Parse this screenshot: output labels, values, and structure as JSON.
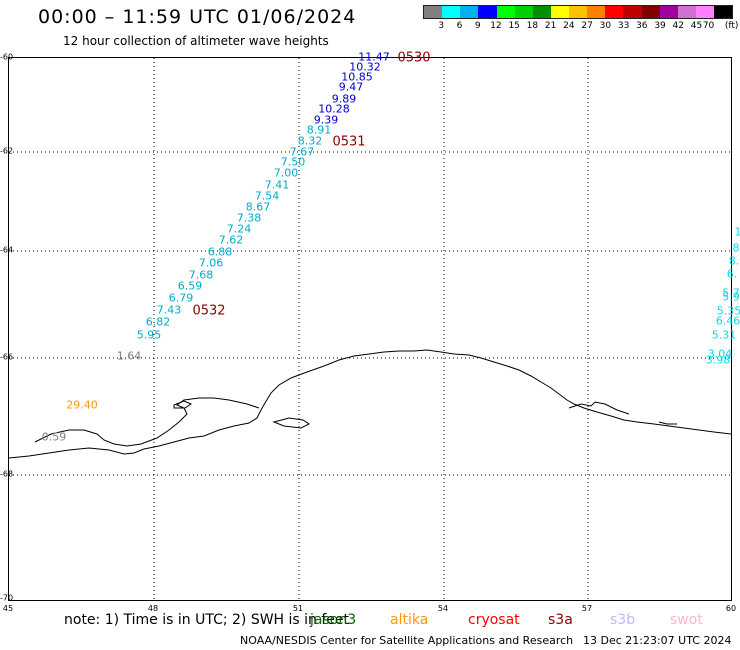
{
  "header": {
    "title": "00:00 – 11:59 UTC 01/06/2024",
    "subtitle": "12 hour collection of altimeter wave heights"
  },
  "legend": {
    "unit": "(ft)",
    "ticks": [
      "3",
      "6",
      "9",
      "12",
      "15",
      "18",
      "21",
      "24",
      "27",
      "30",
      "33",
      "36",
      "39",
      "42",
      "45",
      "70"
    ],
    "colors": [
      "#808080",
      "#00ffff",
      "#00b0f0",
      "#0000ff",
      "#00ff00",
      "#00d000",
      "#009000",
      "#ffff00",
      "#ffc000",
      "#ff8000",
      "#ff0000",
      "#c00000",
      "#800000",
      "#a000a0",
      "#d070d0",
      "#ff80ff",
      "#000000"
    ]
  },
  "axes": {
    "lat_labels": [
      "-60",
      "-62",
      "-64",
      "-66",
      "-68",
      "-70"
    ],
    "lon_labels": [
      "45",
      "48",
      "51",
      "54",
      "57",
      "60"
    ]
  },
  "swh_colors": {
    "blue": "#0000cc",
    "cyan": "#00aacc",
    "light_cyan": "#00ddee",
    "gray": "#808080",
    "orange": "#ff9900",
    "dark_red": "#8b0000"
  },
  "observations": [
    {
      "text": "11.47",
      "color": "blue"
    },
    {
      "text": "10.32",
      "color": "blue"
    },
    {
      "text": "10.85",
      "color": "blue"
    },
    {
      "text": "9.47",
      "color": "blue"
    },
    {
      "text": "9.89",
      "color": "blue"
    },
    {
      "text": "10.28",
      "color": "blue"
    },
    {
      "text": "9.39",
      "color": "blue"
    },
    {
      "text": "8.91",
      "color": "cyan"
    },
    {
      "text": "8.32",
      "color": "cyan"
    },
    {
      "text": "7.67",
      "color": "cyan"
    },
    {
      "text": "7.50",
      "color": "cyan"
    },
    {
      "text": "7.00",
      "color": "cyan"
    },
    {
      "text": "7.41",
      "color": "cyan"
    },
    {
      "text": "7.54",
      "color": "cyan"
    },
    {
      "text": "8.67",
      "color": "cyan"
    },
    {
      "text": "7.38",
      "color": "cyan"
    },
    {
      "text": "7.24",
      "color": "cyan"
    },
    {
      "text": "7.62",
      "color": "cyan"
    },
    {
      "text": "6.88",
      "color": "cyan"
    },
    {
      "text": "7.06",
      "color": "cyan"
    },
    {
      "text": "7.68",
      "color": "cyan"
    },
    {
      "text": "6.59",
      "color": "cyan"
    },
    {
      "text": "6.79",
      "color": "cyan"
    },
    {
      "text": "7.43",
      "color": "cyan"
    },
    {
      "text": "6.82",
      "color": "cyan"
    },
    {
      "text": "5.95",
      "color": "cyan"
    },
    {
      "text": "1.64",
      "color": "gray"
    },
    {
      "text": "29.40",
      "color": "orange"
    },
    {
      "text": "0.59",
      "color": "gray"
    },
    {
      "text": "1",
      "color": "light_cyan"
    },
    {
      "text": "8",
      "color": "light_cyan"
    },
    {
      "text": "8.",
      "color": "light_cyan"
    },
    {
      "text": "6.",
      "color": "light_cyan"
    },
    {
      "text": "5.7",
      "color": "light_cyan"
    },
    {
      "text": "5.9",
      "color": "light_cyan"
    },
    {
      "text": "5.35",
      "color": "light_cyan"
    },
    {
      "text": "6.46",
      "color": "light_cyan"
    },
    {
      "text": "5.31",
      "color": "light_cyan"
    },
    {
      "text": "3.04",
      "color": "light_cyan"
    },
    {
      "text": "3.98",
      "color": "light_cyan"
    }
  ],
  "time_tags": [
    {
      "text": "0530"
    },
    {
      "text": "0531"
    },
    {
      "text": "0532"
    }
  ],
  "footer": {
    "note": "note:  1) Time is in UTC; 2) SWH is in feet",
    "satellites": [
      {
        "name": "jason3",
        "color": "#006400"
      },
      {
        "name": "altika",
        "color": "#ff9900"
      },
      {
        "name": "cryosat",
        "color": "#ff0000"
      },
      {
        "name": "s3a",
        "color": "#8b0000"
      },
      {
        "name": "s3b",
        "color": "#c8b4ff"
      },
      {
        "name": "swot",
        "color": "#ffb6c1"
      }
    ],
    "credit": "NOAA/NESDIS Center for Satellite Applications and Research",
    "timestamp": "13 Dec 21:23:07 UTC 2024"
  }
}
